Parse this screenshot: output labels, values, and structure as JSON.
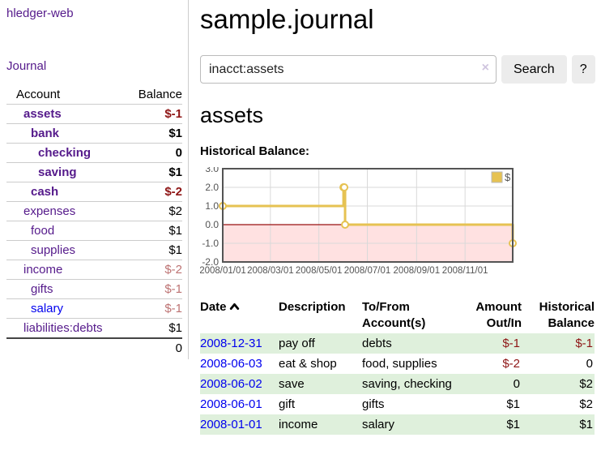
{
  "sidebar": {
    "app_title": "hledger-web",
    "nav_journal": "Journal",
    "accounts_table": {
      "headers": [
        "Account",
        "Balance"
      ],
      "rows": [
        {
          "account": "assets",
          "balance": "$-1",
          "depth": 1,
          "bold": true,
          "negative": "strong"
        },
        {
          "account": "bank",
          "balance": "$1",
          "depth": 2,
          "bold": true,
          "negative": "none"
        },
        {
          "account": "checking",
          "balance": "0",
          "depth": 3,
          "bold": true,
          "negative": "none"
        },
        {
          "account": "saving",
          "balance": "$1",
          "depth": 3,
          "bold": true,
          "negative": "none"
        },
        {
          "account": "cash",
          "balance": "$-2",
          "depth": 2,
          "bold": true,
          "negative": "strong"
        },
        {
          "account": "expenses",
          "balance": "$2",
          "depth": 1,
          "bold": false,
          "negative": "none"
        },
        {
          "account": "food",
          "balance": "$1",
          "depth": 2,
          "bold": false,
          "negative": "none"
        },
        {
          "account": "supplies",
          "balance": "$1",
          "depth": 2,
          "bold": false,
          "negative": "none"
        },
        {
          "account": "income",
          "balance": "$-2",
          "depth": 1,
          "bold": false,
          "negative": "muted"
        },
        {
          "account": "gifts",
          "balance": "$-1",
          "depth": 2,
          "bold": false,
          "negative": "muted"
        },
        {
          "account": "salary",
          "balance": "$-1",
          "depth": 2,
          "bold": false,
          "negative": "muted",
          "link_color": "blue"
        },
        {
          "account": "liabilities:debts",
          "balance": "$1",
          "depth": 1,
          "bold": false,
          "negative": "none"
        }
      ],
      "total": "0"
    }
  },
  "header": {
    "title": "sample.journal"
  },
  "search": {
    "value": "inacct:assets",
    "clear_icon": "×",
    "search_button": "Search",
    "help_button": "?"
  },
  "main": {
    "account_heading": "assets",
    "chart_label": "Historical Balance:"
  },
  "chart_data": {
    "type": "line",
    "step": true,
    "legend": "$",
    "legend_position": "top-right",
    "series_color": "#e6c252",
    "marker_style": "open-circle",
    "ylim": [
      -2,
      3
    ],
    "y_ticks": [
      3.0,
      2.0,
      1.0,
      0.0,
      -1.0,
      -2.0
    ],
    "x_range_days": [
      0,
      365
    ],
    "x_ticks": [
      {
        "day": 0,
        "label": "2008/01/01"
      },
      {
        "day": 60,
        "label": "2008/03/01"
      },
      {
        "day": 121,
        "label": "2008/05/01"
      },
      {
        "day": 182,
        "label": "2008/07/01"
      },
      {
        "day": 244,
        "label": "2008/09/01"
      },
      {
        "day": 305,
        "label": "2008/11/01"
      }
    ],
    "points": [
      {
        "date": "2008-01-01",
        "day": 0,
        "value": 1
      },
      {
        "date": "2008-06-01",
        "day": 152,
        "value": 2
      },
      {
        "date": "2008-06-02",
        "day": 153,
        "value": 2
      },
      {
        "date": "2008-06-03",
        "day": 154,
        "value": 0
      },
      {
        "date": "2008-12-31",
        "day": 365,
        "value": -1
      }
    ],
    "negative_region_color": "#ffe1e1",
    "zero_line_color": "#991111",
    "grid_color": "#d9d9d9",
    "border_color": "#545454",
    "axis_text_color": "#545454"
  },
  "register_table": {
    "headers": [
      {
        "lines": [
          "Date"
        ],
        "align": "left",
        "sort": "asc"
      },
      {
        "lines": [
          "Description"
        ],
        "align": "left"
      },
      {
        "lines": [
          "To/From",
          "Account(s)"
        ],
        "align": "left"
      },
      {
        "lines": [
          "Amount",
          "Out/In"
        ],
        "align": "right"
      },
      {
        "lines": [
          "Historical",
          "Balance"
        ],
        "align": "right"
      }
    ],
    "rows": [
      {
        "date": "2008-12-31",
        "description": "pay off",
        "accounts": "debts",
        "amount": "$-1",
        "amount_negative": true,
        "balance": "$-1",
        "balance_negative": true,
        "highlight": true
      },
      {
        "date": "2008-06-03",
        "description": "eat & shop",
        "accounts": "food, supplies",
        "amount": "$-2",
        "amount_negative": true,
        "balance": "0",
        "balance_negative": false,
        "highlight": false
      },
      {
        "date": "2008-06-02",
        "description": "save",
        "accounts": "saving, checking",
        "amount": "0",
        "amount_negative": false,
        "balance": "$2",
        "balance_negative": false,
        "highlight": true
      },
      {
        "date": "2008-06-01",
        "description": "gift",
        "accounts": "gifts",
        "amount": "$1",
        "amount_negative": false,
        "balance": "$2",
        "balance_negative": false,
        "highlight": false
      },
      {
        "date": "2008-01-01",
        "description": "income",
        "accounts": "salary",
        "amount": "$1",
        "amount_negative": false,
        "balance": "$1",
        "balance_negative": false,
        "highlight": true
      }
    ]
  }
}
